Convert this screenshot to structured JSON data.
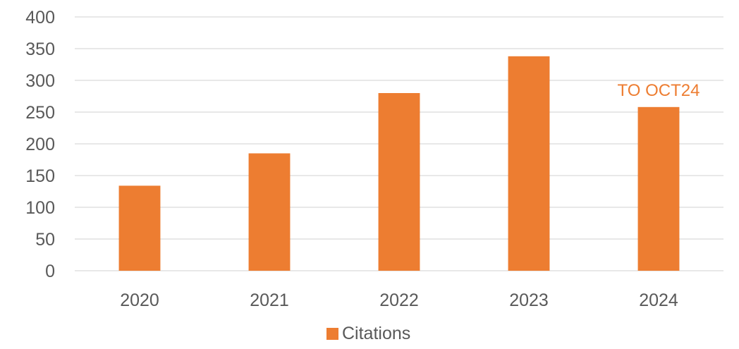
{
  "chart_data": {
    "type": "bar",
    "title": "",
    "xlabel": "",
    "ylabel": "",
    "categories": [
      "2020",
      "2021",
      "2022",
      "2023",
      "2024"
    ],
    "series": [
      {
        "name": "Citations",
        "values": [
          134,
          185,
          280,
          338,
          258
        ],
        "color": "#ed7d31"
      }
    ],
    "ylim": [
      0,
      400
    ],
    "yticks": [
      "0",
      "50",
      "100",
      "150",
      "200",
      "250",
      "300",
      "350",
      "400"
    ],
    "grid": true,
    "legend": {
      "position": "bottom",
      "entries": [
        "Citations"
      ]
    },
    "annotations": [
      {
        "text": "TO OCT24",
        "category": "2024",
        "color": "#ed7d31"
      }
    ]
  }
}
